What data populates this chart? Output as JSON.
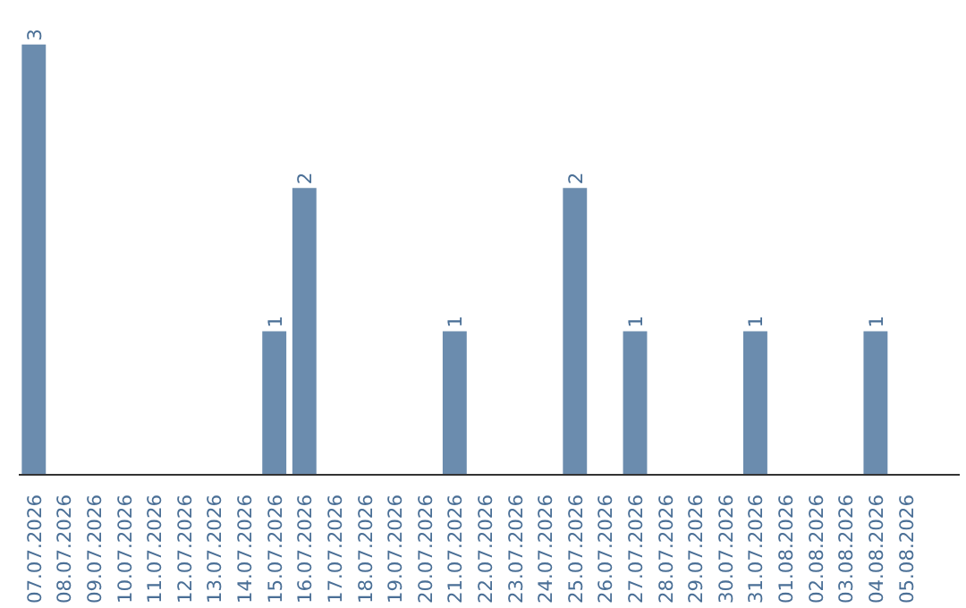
{
  "chart_data": {
    "type": "bar",
    "categories": [
      "07.07.2026",
      "08.07.2026",
      "09.07.2026",
      "10.07.2026",
      "11.07.2026",
      "12.07.2026",
      "13.07.2026",
      "14.07.2026",
      "15.07.2026",
      "16.07.2026",
      "17.07.2026",
      "18.07.2026",
      "19.07.2026",
      "20.07.2026",
      "21.07.2026",
      "22.07.2026",
      "23.07.2026",
      "24.07.2026",
      "25.07.2026",
      "26.07.2026",
      "27.07.2026",
      "28.07.2026",
      "29.07.2026",
      "30.07.2026",
      "31.07.2026",
      "01.08.2026",
      "02.08.2026",
      "03.08.2026",
      "04.08.2026",
      "05.08.2026"
    ],
    "values": [
      3,
      0,
      0,
      0,
      0,
      0,
      0,
      0,
      1,
      2,
      0,
      0,
      0,
      0,
      1,
      0,
      0,
      0,
      2,
      0,
      1,
      0,
      0,
      0,
      1,
      0,
      0,
      0,
      1,
      0
    ],
    "value_labels": [
      "3",
      null,
      null,
      null,
      null,
      null,
      null,
      null,
      "1",
      "2",
      null,
      null,
      null,
      null,
      "1",
      null,
      null,
      null,
      "2",
      null,
      "1",
      null,
      null,
      null,
      "1",
      null,
      null,
      null,
      "1",
      null
    ],
    "color": "#6b8cae"
  }
}
